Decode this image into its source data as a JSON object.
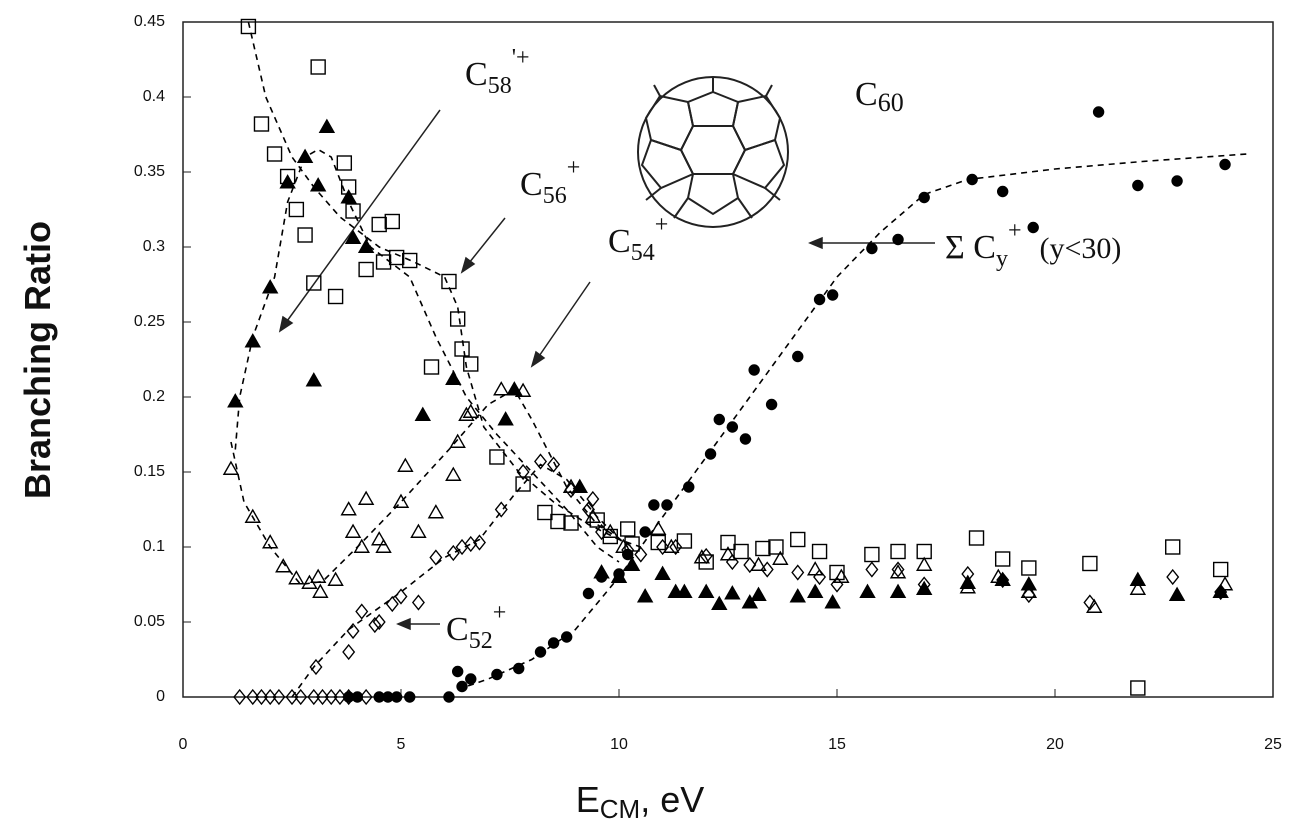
{
  "chart_data": {
    "type": "scatter",
    "ylabel": "Branching Ratio",
    "xlabel": {
      "main": "E",
      "sub": "CM",
      "rest": ", eV"
    },
    "molecule_label": {
      "base": "C",
      "sub": "60"
    },
    "xlim": [
      0,
      25
    ],
    "xticks": [
      0,
      5,
      10,
      15,
      20,
      25
    ],
    "ylim": [
      0,
      0.45
    ],
    "yticks": [
      0,
      0.05,
      0.1,
      0.15,
      0.2,
      0.25,
      0.3,
      0.35,
      0.4,
      0.45
    ],
    "series": [
      {
        "name": {
          "base": "C",
          "sub": "58",
          "sup": "'+"
        },
        "marker": "filled-triangle",
        "color": "#000000",
        "x": [
          1.2,
          1.6,
          2.0,
          2.4,
          2.8,
          3.1,
          3.3,
          3.0,
          3.8,
          3.9,
          4.2,
          5.5,
          6.2,
          7.4,
          7.6,
          9.1,
          9.6,
          10.0,
          10.3,
          10.6,
          11.0,
          11.3,
          11.5,
          12.0,
          12.3,
          12.6,
          13.0,
          13.2,
          14.1,
          14.5,
          14.9,
          15.7,
          16.4,
          17.0,
          18.0,
          18.8,
          19.4,
          21.9,
          22.8,
          23.8
        ],
        "values": [
          0.197,
          0.237,
          0.273,
          0.343,
          0.36,
          0.341,
          0.38,
          0.211,
          0.333,
          0.306,
          0.3,
          0.188,
          0.212,
          0.185,
          0.205,
          0.14,
          0.083,
          0.08,
          0.088,
          0.067,
          0.082,
          0.07,
          0.07,
          0.07,
          0.062,
          0.069,
          0.063,
          0.068,
          0.067,
          0.07,
          0.063,
          0.07,
          0.07,
          0.072,
          0.076,
          0.078,
          0.075,
          0.078,
          0.068,
          0.07
        ],
        "fit": {
          "x": [
            1.2,
            1.3,
            1.6,
            2.1,
            2.4,
            2.8,
            3.1,
            3.4,
            3.8,
            4.3,
            5.2,
            5.8,
            6.5,
            7.2,
            8.0,
            8.8,
            9.5,
            10.0
          ],
          "y": [
            0.165,
            0.2,
            0.24,
            0.28,
            0.33,
            0.36,
            0.365,
            0.36,
            0.33,
            0.3,
            0.28,
            0.24,
            0.2,
            0.175,
            0.15,
            0.125,
            0.1,
            0.09
          ]
        }
      },
      {
        "name": {
          "base": "C",
          "sub": "56",
          "sup": "+"
        },
        "marker": "open-square",
        "color": "#000000",
        "x": [
          1.5,
          1.8,
          2.1,
          2.4,
          2.6,
          2.8,
          3.1,
          3.0,
          3.5,
          3.7,
          3.8,
          3.9,
          4.2,
          4.5,
          4.6,
          4.8,
          4.9,
          5.2,
          5.7,
          6.1,
          6.3,
          6.4,
          6.6,
          7.2,
          7.8,
          8.3,
          8.6,
          8.9,
          9.5,
          9.8,
          10.2,
          10.3,
          10.9,
          11.5,
          12.0,
          12.5,
          12.8,
          13.3,
          13.6,
          14.1,
          14.6,
          15.0,
          15.8,
          16.4,
          17.0,
          18.2,
          18.8,
          19.4,
          20.8,
          21.9,
          22.7,
          23.8
        ],
        "values": [
          0.447,
          0.382,
          0.362,
          0.347,
          0.325,
          0.308,
          0.42,
          0.276,
          0.267,
          0.356,
          0.34,
          0.324,
          0.285,
          0.315,
          0.29,
          0.317,
          0.293,
          0.291,
          0.22,
          0.277,
          0.252,
          0.232,
          0.222,
          0.16,
          0.142,
          0.123,
          0.117,
          0.116,
          0.118,
          0.107,
          0.112,
          0.102,
          0.103,
          0.104,
          0.09,
          0.103,
          0.097,
          0.099,
          0.1,
          0.105,
          0.097,
          0.083,
          0.095,
          0.097,
          0.097,
          0.106,
          0.092,
          0.086,
          0.089,
          0.006,
          0.1,
          0.085
        ],
        "fit": {
          "x": [
            1.5,
            1.9,
            2.5,
            3.0,
            3.6,
            4.5,
            5.3,
            6.0,
            6.3,
            6.5,
            6.9,
            7.7,
            8.5,
            9.3,
            10.0,
            10.5
          ],
          "y": [
            0.45,
            0.4,
            0.36,
            0.34,
            0.32,
            0.3,
            0.29,
            0.28,
            0.26,
            0.22,
            0.18,
            0.15,
            0.13,
            0.115,
            0.105,
            0.1
          ]
        }
      },
      {
        "name": {
          "base": "C",
          "sub": "54",
          "sup": "+"
        },
        "marker": "open-triangle",
        "color": "#000000",
        "x": [
          1.1,
          1.6,
          2.0,
          2.3,
          2.6,
          2.9,
          3.1,
          3.15,
          3.5,
          3.8,
          3.9,
          4.1,
          4.2,
          4.5,
          4.6,
          5.0,
          5.1,
          5.4,
          5.8,
          6.2,
          6.3,
          6.5,
          6.6,
          7.3,
          7.8,
          8.9,
          9.4,
          9.8,
          10.1,
          10.9,
          11.2,
          11.9,
          12.5,
          13.2,
          13.7,
          14.5,
          15.1,
          16.4,
          17.0,
          18.0,
          18.7,
          19.4,
          20.9,
          21.9,
          23.9
        ],
        "values": [
          0.152,
          0.12,
          0.103,
          0.087,
          0.079,
          0.076,
          0.08,
          0.07,
          0.078,
          0.125,
          0.11,
          0.1,
          0.132,
          0.105,
          0.1,
          0.13,
          0.154,
          0.11,
          0.123,
          0.148,
          0.17,
          0.188,
          0.19,
          0.205,
          0.204,
          0.14,
          0.12,
          0.11,
          0.1,
          0.112,
          0.1,
          0.093,
          0.095,
          0.088,
          0.092,
          0.085,
          0.08,
          0.083,
          0.088,
          0.073,
          0.08,
          0.07,
          0.06,
          0.072,
          0.075
        ],
        "fit": {
          "x": [
            1.1,
            1.4,
            2.0,
            2.7,
            3.2,
            4.0,
            5.0,
            6.1,
            7.0,
            7.6,
            8.0,
            8.8,
            9.5,
            10.3
          ],
          "y": [
            0.17,
            0.13,
            0.1,
            0.075,
            0.077,
            0.1,
            0.13,
            0.165,
            0.195,
            0.205,
            0.185,
            0.14,
            0.115,
            0.1
          ]
        }
      },
      {
        "name": {
          "base": "C",
          "sub": "52",
          "sup": "+"
        },
        "marker": "open-diamond",
        "color": "#000000",
        "x": [
          1.3,
          1.6,
          1.8,
          2.0,
          2.2,
          2.5,
          2.7,
          3.0,
          3.2,
          3.4,
          3.6,
          3.8,
          4.2,
          3.05,
          3.8,
          3.9,
          4.1,
          4.4,
          4.5,
          4.8,
          5.0,
          5.4,
          5.8,
          6.2,
          6.4,
          6.6,
          6.8,
          7.3,
          7.8,
          8.2,
          8.5,
          8.9,
          9.3,
          9.4,
          9.6,
          10.2,
          10.5,
          11.0,
          11.3,
          12.0,
          12.6,
          13.0,
          13.4,
          14.1,
          14.6,
          15.0,
          15.8,
          16.4,
          17.0,
          18.0,
          18.8,
          19.4,
          20.8,
          22.7,
          23.8
        ],
        "values": [
          0,
          0,
          0,
          0,
          0,
          0,
          0,
          0,
          0,
          0,
          0,
          0,
          0,
          0.02,
          0.03,
          0.044,
          0.057,
          0.048,
          0.05,
          0.062,
          0.067,
          0.063,
          0.093,
          0.096,
          0.1,
          0.102,
          0.103,
          0.125,
          0.15,
          0.157,
          0.155,
          0.138,
          0.125,
          0.132,
          0.11,
          0.098,
          0.095,
          0.1,
          0.1,
          0.094,
          0.09,
          0.088,
          0.085,
          0.083,
          0.08,
          0.075,
          0.085,
          0.085,
          0.075,
          0.082,
          0.078,
          0.068,
          0.063,
          0.08,
          0.07
        ],
        "fit": {
          "x": [
            2.5,
            3.0,
            3.8,
            5.0,
            6.0,
            6.8,
            7.6,
            8.2,
            8.8,
            9.5,
            10.2
          ],
          "y": [
            0,
            0.02,
            0.045,
            0.07,
            0.093,
            0.105,
            0.135,
            0.155,
            0.145,
            0.12,
            0.1
          ]
        }
      },
      {
        "name": {
          "base": "Σ C",
          "sub": "y",
          "sup": "+",
          "note": "(y<30)"
        },
        "marker": "filled-circle",
        "color": "#000000",
        "x": [
          3.8,
          4.0,
          4.5,
          4.7,
          4.9,
          5.2,
          6.1,
          6.3,
          6.4,
          6.6,
          7.2,
          7.7,
          8.2,
          8.5,
          8.8,
          9.3,
          9.6,
          10.0,
          10.2,
          10.6,
          10.8,
          11.1,
          11.6,
          12.1,
          12.3,
          12.6,
          12.9,
          13.1,
          13.5,
          14.1,
          14.6,
          14.9,
          15.8,
          16.4,
          17.0,
          18.1,
          18.8,
          19.5,
          21.0,
          21.9,
          22.8,
          23.9
        ],
        "values": [
          0,
          0,
          0,
          0,
          0,
          0,
          0,
          0.017,
          0.007,
          0.012,
          0.015,
          0.019,
          0.03,
          0.036,
          0.04,
          0.069,
          0.08,
          0.082,
          0.095,
          0.11,
          0.128,
          0.128,
          0.14,
          0.162,
          0.185,
          0.18,
          0.172,
          0.218,
          0.195,
          0.227,
          0.265,
          0.268,
          0.299,
          0.305,
          0.333,
          0.345,
          0.337,
          0.313,
          0.39,
          0.341,
          0.344,
          0.355
        ],
        "fit": {
          "x": [
            6.3,
            7.0,
            8.0,
            9.0,
            10.0,
            11.0,
            12.0,
            13.0,
            14.0,
            15.0,
            16.0,
            17.0,
            18.0,
            20.0,
            22.0,
            24.4
          ],
          "y": [
            0.005,
            0.012,
            0.025,
            0.045,
            0.08,
            0.12,
            0.16,
            0.2,
            0.24,
            0.28,
            0.31,
            0.335,
            0.345,
            0.352,
            0.357,
            0.362
          ]
        }
      }
    ]
  }
}
